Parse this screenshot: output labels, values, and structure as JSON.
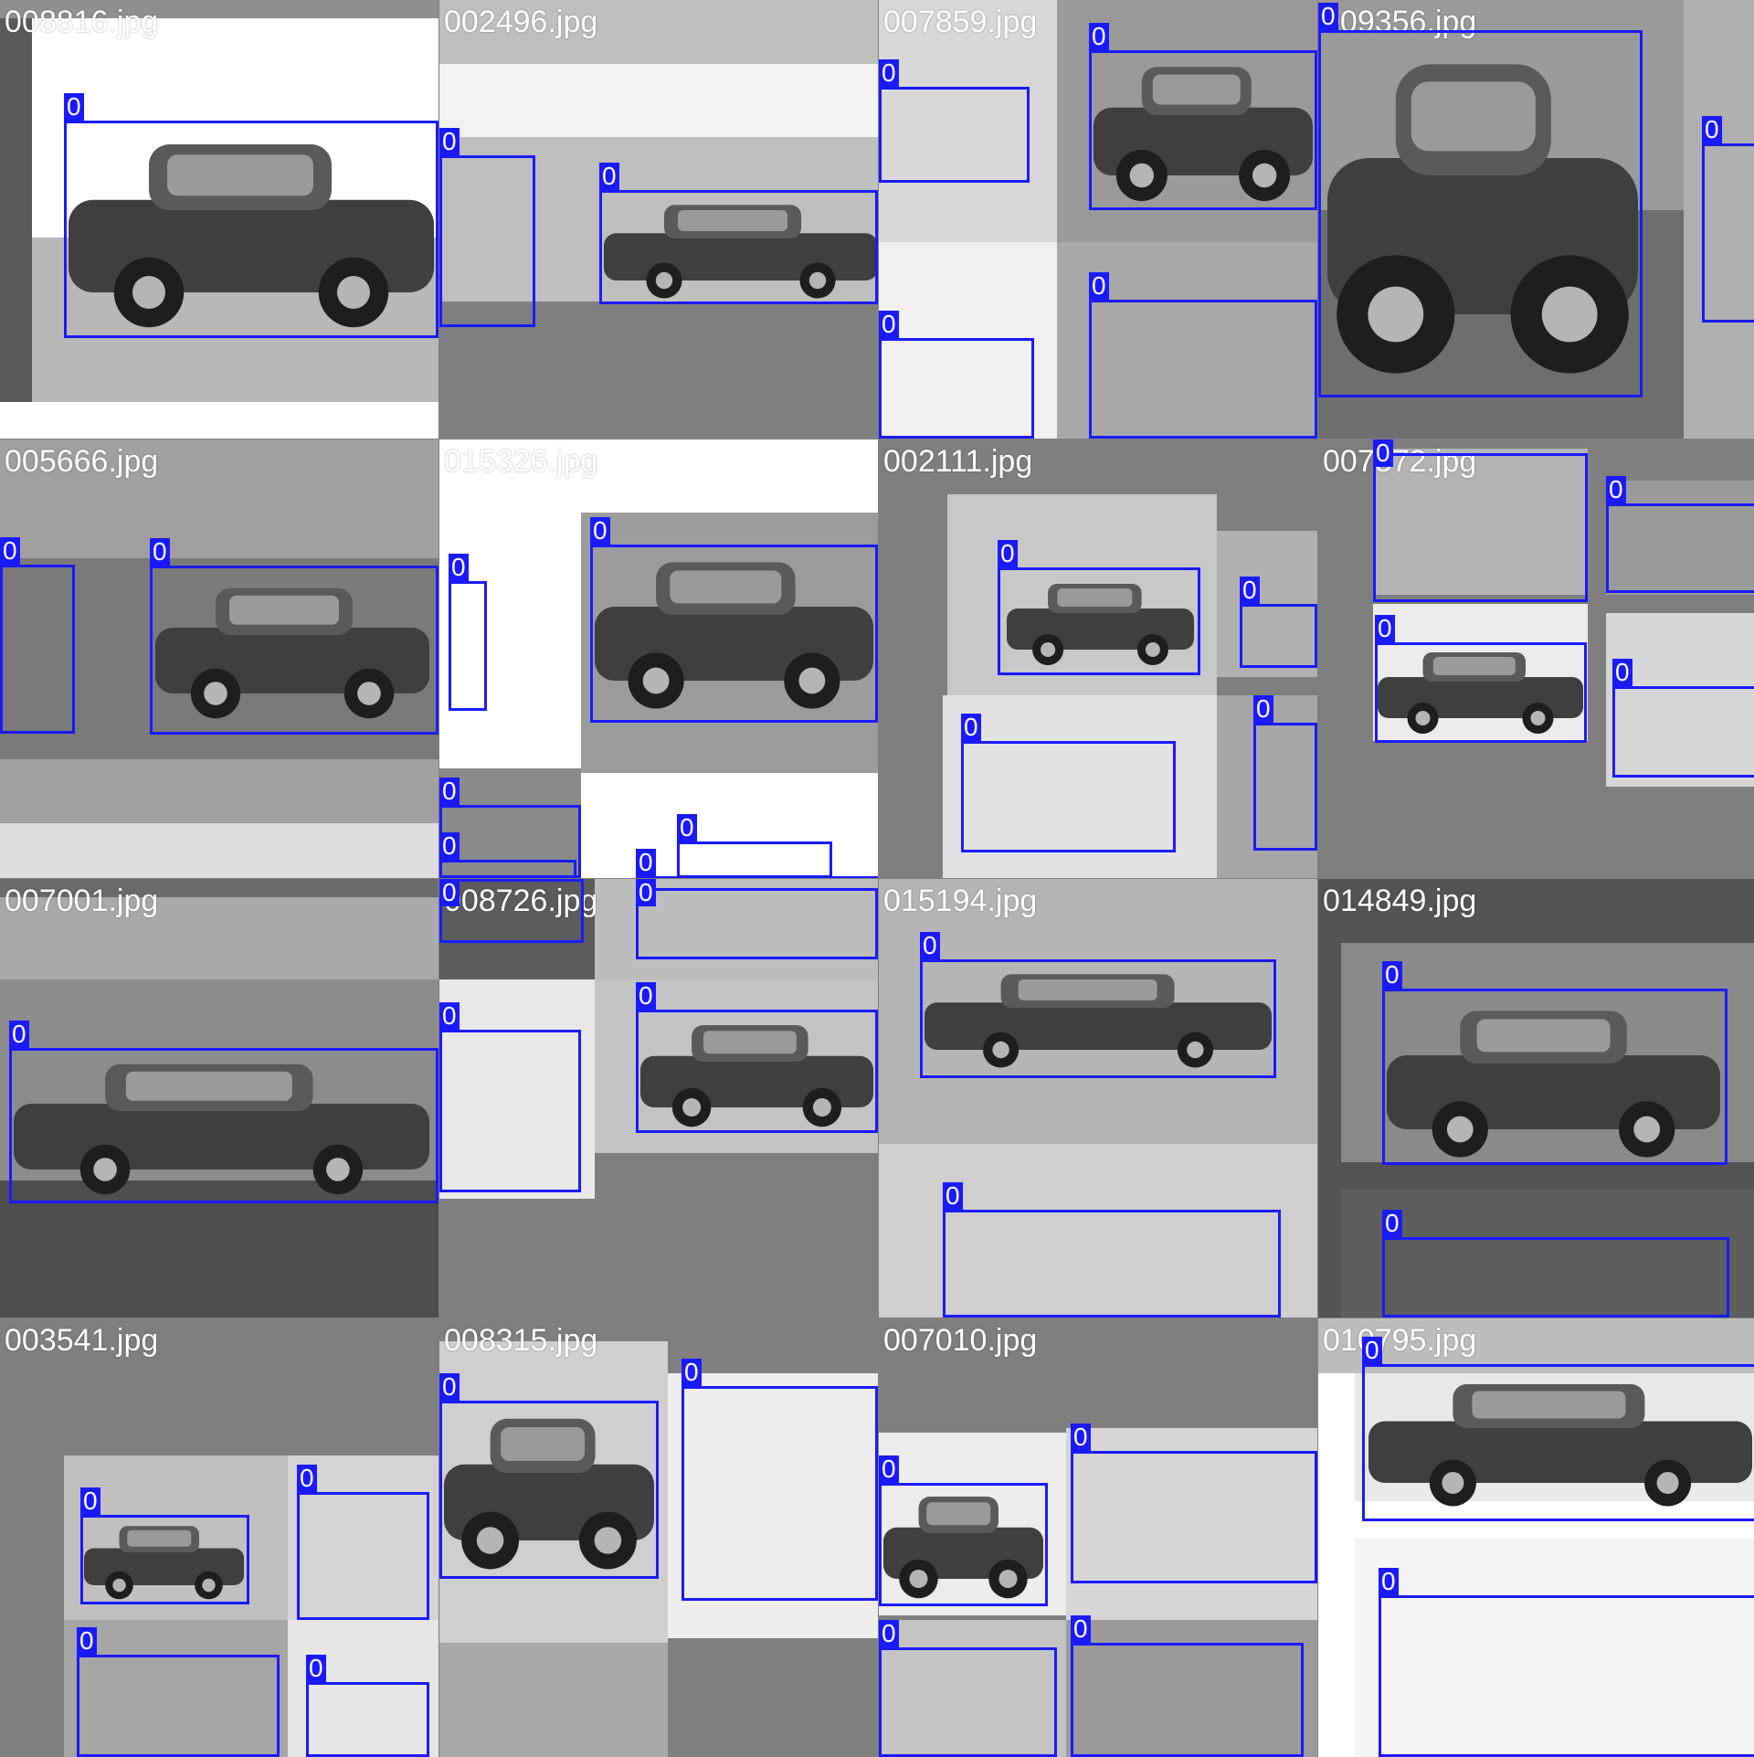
{
  "mosaic": {
    "box_color": "#1a1aff",
    "label_text_color": "#ffffff",
    "tiles": [
      {
        "name": "008816.jpg",
        "label": "0"
      },
      {
        "name": "002496.jpg",
        "label": "0"
      },
      {
        "name": "007859.jpg",
        "label": "0"
      },
      {
        "name": "009356.jpg",
        "label": "0"
      },
      {
        "name": "005666.jpg",
        "label": "0"
      },
      {
        "name": "015326.jpg",
        "label": "0"
      },
      {
        "name": "002111.jpg",
        "label": "0"
      },
      {
        "name": "007872.jpg",
        "label": "0"
      },
      {
        "name": "007001.jpg",
        "label": "0"
      },
      {
        "name": "008726.jpg",
        "label": "0"
      },
      {
        "name": "015194.jpg",
        "label": "0"
      },
      {
        "name": "014849.jpg",
        "label": "0"
      },
      {
        "name": "003541.jpg",
        "label": "0"
      },
      {
        "name": "008315.jpg",
        "label": "0"
      },
      {
        "name": "007010.jpg",
        "label": "0"
      },
      {
        "name": "010795.jpg",
        "label": "0"
      }
    ]
  }
}
